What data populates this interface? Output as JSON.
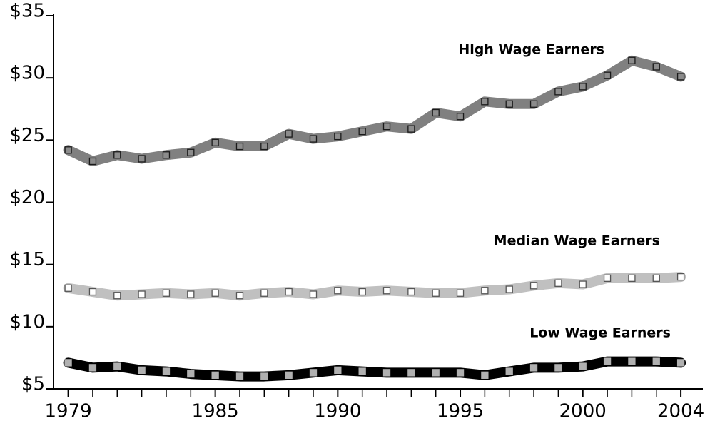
{
  "chart_data": {
    "type": "line",
    "x": [
      1979,
      1980,
      1981,
      1982,
      1983,
      1984,
      1985,
      1986,
      1987,
      1988,
      1989,
      1990,
      1991,
      1992,
      1993,
      1994,
      1995,
      1996,
      1997,
      1998,
      1999,
      2000,
      2001,
      2002,
      2003,
      2004
    ],
    "series": [
      {
        "name": "High Wage Earners",
        "color": "#808080",
        "marker_fill": "#8c8c8c",
        "marker_stroke": "#1a1a1a",
        "values": [
          24.2,
          23.3,
          23.8,
          23.5,
          23.8,
          24.0,
          24.8,
          24.5,
          24.5,
          25.5,
          25.1,
          25.3,
          25.7,
          26.1,
          25.9,
          27.2,
          26.9,
          28.1,
          27.9,
          27.9,
          28.9,
          29.3,
          30.2,
          31.4,
          30.9,
          30.1
        ]
      },
      {
        "name": "Median Wage Earners",
        "color": "#c0c0c0",
        "marker_fill": "#ffffff",
        "marker_stroke": "#555555",
        "values": [
          13.1,
          12.8,
          12.5,
          12.6,
          12.7,
          12.6,
          12.7,
          12.5,
          12.7,
          12.8,
          12.6,
          12.9,
          12.8,
          12.9,
          12.8,
          12.7,
          12.7,
          12.9,
          13.0,
          13.3,
          13.5,
          13.4,
          13.9,
          13.9,
          13.9,
          14.0
        ]
      },
      {
        "name": "Low Wage Earners",
        "color": "#000000",
        "marker_fill": "#b0b0b0",
        "marker_stroke": "#b0b0b0",
        "values": [
          7.1,
          6.7,
          6.8,
          6.5,
          6.4,
          6.2,
          6.1,
          6.0,
          6.0,
          6.1,
          6.3,
          6.5,
          6.4,
          6.3,
          6.3,
          6.3,
          6.3,
          6.1,
          6.4,
          6.7,
          6.7,
          6.8,
          7.2,
          7.2,
          7.2,
          7.1
        ]
      }
    ],
    "xlim": [
      1978.4,
      2004.9
    ],
    "xticks": [
      1979,
      1985,
      1990,
      1995,
      2000,
      2004
    ],
    "minor_xticks": [
      1980,
      1981,
      1982,
      1983,
      1984,
      1986,
      1987,
      1988,
      1989,
      1991,
      1992,
      1993,
      1994,
      1996,
      1997,
      1998,
      1999,
      2001,
      2002,
      2003
    ],
    "ylim": [
      5,
      35
    ],
    "yticks": [
      {
        "value": 5,
        "label": "$5"
      },
      {
        "value": 10,
        "label": "$10"
      },
      {
        "value": 15,
        "label": "$15"
      },
      {
        "value": 20,
        "label": "$20"
      },
      {
        "value": 25,
        "label": "$25"
      },
      {
        "value": 30,
        "label": "$30"
      },
      {
        "value": 35,
        "label": "$35"
      }
    ],
    "grid": false
  }
}
